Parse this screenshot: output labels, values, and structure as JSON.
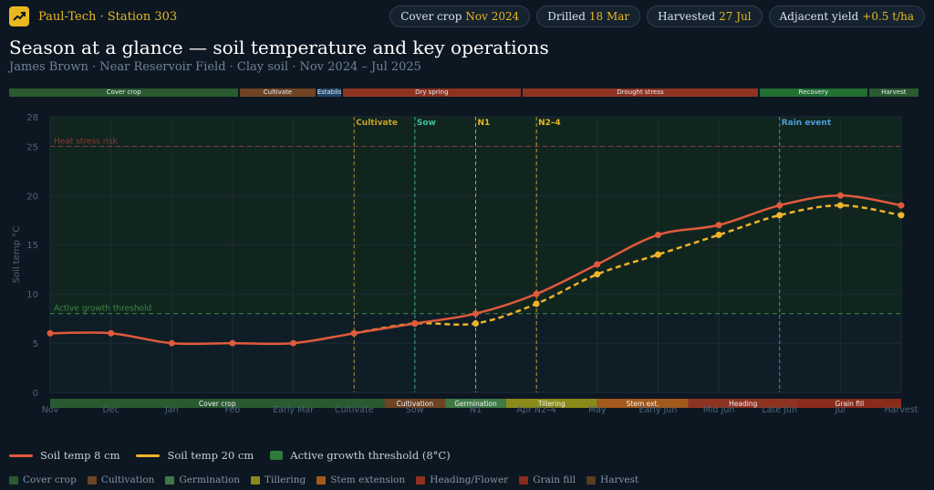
{
  "brand": {
    "name": "Paul-Tech · Station 303",
    "icon": "trend-chart-icon"
  },
  "pills": [
    {
      "label": "Cover crop",
      "value": "Nov 2024"
    },
    {
      "label": "Drilled",
      "value": "18 Mar"
    },
    {
      "label": "Harvested",
      "value": "27 Jul"
    },
    {
      "label": "Adjacent yield",
      "value": "+0.5 t/ha"
    }
  ],
  "title": "Season at a glance — soil temperature and key operations",
  "subtitle": "James Brown · Near Reservoir Field · Clay soil · Nov 2024 – Jul 2025",
  "season_strip": [
    {
      "label": "Cover crop",
      "color": "#2a5a30",
      "start": 0,
      "end": 3.6
    },
    {
      "label": "Cultivate",
      "color": "#6e4424",
      "start": 3.6,
      "end": 4.8
    },
    {
      "label": "Establish",
      "color": "#23466a",
      "start": 4.8,
      "end": 5.2
    },
    {
      "label": "Dry spring",
      "color": "#8e3322",
      "start": 5.2,
      "end": 8
    },
    {
      "label": "Drought stress",
      "color": "#8e3322",
      "start": 8,
      "end": 11.7
    },
    {
      "label": "Recovery",
      "color": "#217032",
      "start": 11.7,
      "end": 13.4
    },
    {
      "label": "Harvest",
      "color": "#2a5a30",
      "start": 13.4,
      "end": 14.2
    }
  ],
  "chart_data": {
    "type": "line",
    "categories": [
      "Nov",
      "Dec",
      "Jan",
      "Feb",
      "Early Mar",
      "Cultivate",
      "Sow",
      "N1",
      "Apr N2–4",
      "May",
      "Early Jun",
      "Mid Jun",
      "Late Jun",
      "Jul",
      "Harvest"
    ],
    "ylabel": "Soil temp °C",
    "ylim": [
      0,
      28
    ],
    "yticks": [
      0,
      5,
      10,
      15,
      20,
      25,
      28
    ],
    "series": [
      {
        "name": "Soil temp 8 cm",
        "color": "#e05a3c",
        "style": "solid",
        "values": [
          6,
          6,
          5,
          5,
          5,
          6,
          7,
          8,
          10,
          13,
          16,
          17,
          19,
          20,
          19
        ]
      },
      {
        "name": "Soil temp 20 cm",
        "color": "#f0b429",
        "style": "dashed",
        "values": [
          null,
          null,
          null,
          null,
          null,
          6,
          7,
          7,
          9,
          12,
          14,
          16,
          18,
          19,
          18
        ]
      }
    ],
    "reference_lines": [
      {
        "label": "Heat stress risk",
        "y": 25,
        "color": "#8a3b36"
      },
      {
        "label": "Active growth threshold",
        "y": 8,
        "color": "#3e8a4a"
      }
    ],
    "events": [
      {
        "label": "Cultivate",
        "x": 5,
        "color": "#c9a227"
      },
      {
        "label": "Sow",
        "x": 6,
        "color": "#3fbfa0"
      },
      {
        "label": "N1",
        "x": 7,
        "color": "#e8b820"
      },
      {
        "label": "N2–4",
        "x": 8,
        "color": "#e8b820"
      },
      {
        "label": "Rain event",
        "x": 12,
        "color": "#4a9fd8"
      }
    ],
    "stage_bands": [
      {
        "label": "Cover crop",
        "start": 0,
        "end": 5.5,
        "color": "#2a5a30"
      },
      {
        "label": "Cultivation",
        "start": 5.5,
        "end": 6.5,
        "color": "#6e4424"
      },
      {
        "label": "Germination",
        "start": 6.5,
        "end": 7.5,
        "color": "#3f7a46"
      },
      {
        "label": "Tillering",
        "start": 7.5,
        "end": 9,
        "color": "#8a8a1a"
      },
      {
        "label": "Stem ext.",
        "start": 9,
        "end": 10.5,
        "color": "#a4591c"
      },
      {
        "label": "Heading",
        "start": 10.5,
        "end": 12.3,
        "color": "#8e3322"
      },
      {
        "label": "Grain fill",
        "start": 12.3,
        "end": 14,
        "color": "#8a2b1c"
      }
    ]
  },
  "legend_main": [
    {
      "label": "Soil temp 8 cm",
      "color": "#e05a3c",
      "kind": "line"
    },
    {
      "label": "Soil temp 20 cm",
      "color": "#f0b429",
      "kind": "line"
    },
    {
      "label": "Active growth threshold (8°C)",
      "color": "#2f7a3a",
      "kind": "box"
    }
  ],
  "legend_stages": [
    {
      "label": "Cover crop",
      "color": "#2a5a30"
    },
    {
      "label": "Cultivation",
      "color": "#6e4424"
    },
    {
      "label": "Germination",
      "color": "#3f7a46"
    },
    {
      "label": "Tillering",
      "color": "#8a8a1a"
    },
    {
      "label": "Stem extension",
      "color": "#a4591c"
    },
    {
      "label": "Heading/Flower",
      "color": "#8e3322"
    },
    {
      "label": "Grain fill",
      "color": "#8a2b1c"
    },
    {
      "label": "Harvest",
      "color": "#5a3e22"
    }
  ]
}
